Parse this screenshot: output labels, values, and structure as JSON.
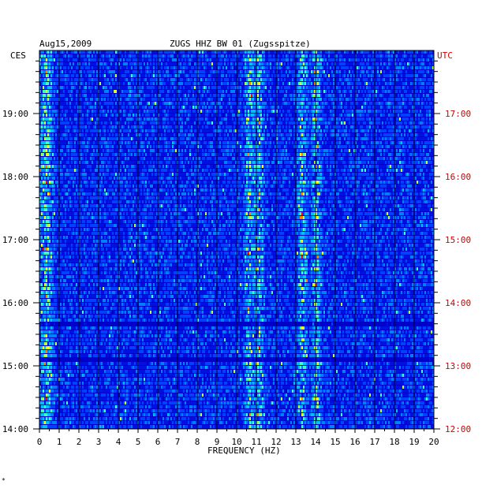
{
  "header": {
    "date": "Aug15,2009",
    "station": "ZUGS HHZ BW 01 (Zugsspitze)"
  },
  "left_zone_label": "CES",
  "right_zone_label": "UTC",
  "x_axis_label": "FREQUENCY (HZ)",
  "footer_mark": "*",
  "colors": {
    "background": "#000080",
    "low": "#0000c8",
    "mid": "#00c8ff",
    "high": "#ffff00",
    "peak": "#ff0000",
    "utc_text": "#d00000"
  },
  "chart_data": {
    "type": "heatmap",
    "title": "ZUGS HHZ BW 01 (Zugsspitze)",
    "xlabel": "FREQUENCY (HZ)",
    "x_ticks": [
      "0",
      "1",
      "2",
      "3",
      "4",
      "5",
      "6",
      "7",
      "8",
      "9",
      "10",
      "11",
      "12",
      "13",
      "14",
      "15",
      "16",
      "17",
      "18",
      "19",
      "20"
    ],
    "xlim": [
      0,
      20
    ],
    "left_time_ticks": [
      "19:00",
      "18:00",
      "17:00",
      "16:00",
      "15:00",
      "14:00"
    ],
    "right_time_ticks": [
      "17:00",
      "16:00",
      "15:00",
      "14:00",
      "13:00",
      "12:00"
    ],
    "time_range_ces": [
      "14:00",
      "19:50"
    ],
    "dominant_bands_hz": [
      0.3,
      10.6,
      11.1,
      13.3,
      14.0
    ],
    "grid": true
  }
}
